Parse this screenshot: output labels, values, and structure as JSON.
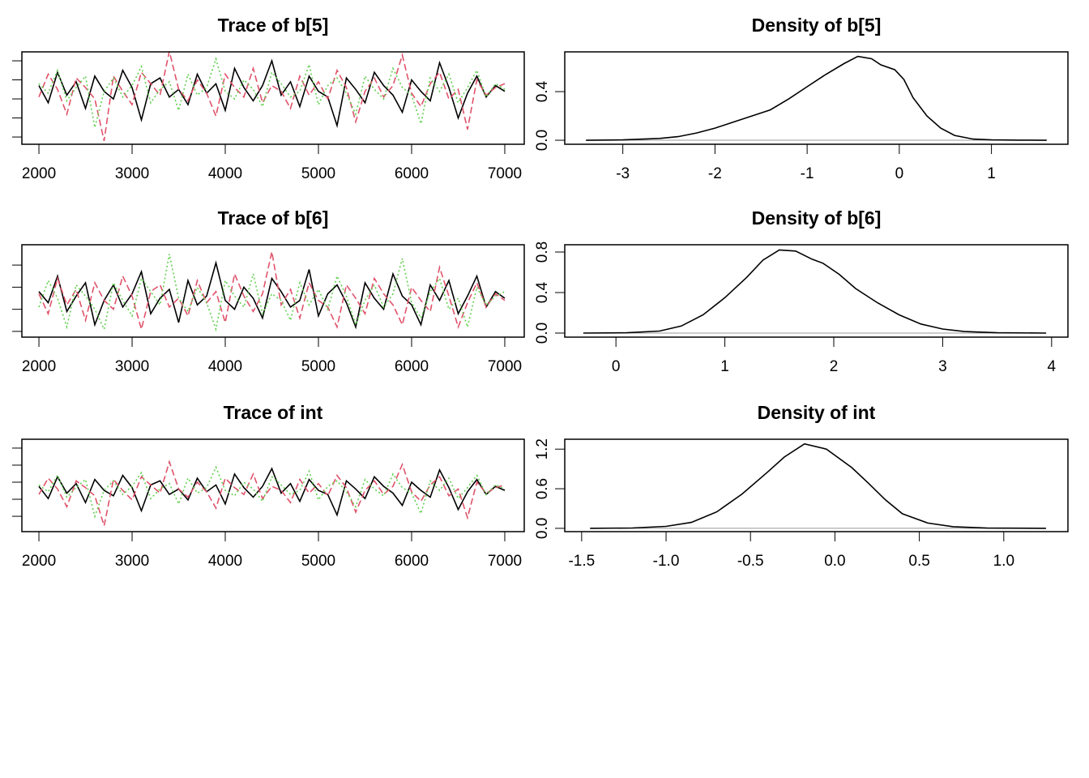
{
  "chart_data": [
    {
      "type": "line",
      "title": "Trace of b[5]",
      "ytick_labels": false,
      "x": [
        2000,
        2100,
        2200,
        2300,
        2400,
        2500,
        2600,
        2700,
        2800,
        2900,
        3000,
        3100,
        3200,
        3300,
        3400,
        3500,
        3600,
        3700,
        3800,
        3900,
        4000,
        4100,
        4200,
        4300,
        4400,
        4500,
        4600,
        4700,
        4800,
        4900,
        5000,
        5100,
        5200,
        5300,
        5400,
        5500,
        5600,
        5700,
        5800,
        5900,
        6000,
        6100,
        6200,
        6300,
        6400,
        6500,
        6600,
        6700,
        6800,
        6900,
        7000
      ],
      "series": [
        {
          "color": "#000000",
          "linestyle": "solid",
          "values": [
            -0.3,
            -1.2,
            0.4,
            -0.8,
            -0.1,
            -1.5,
            0.2,
            -0.6,
            -1.0,
            0.5,
            -0.4,
            -2.1,
            -0.2,
            0.1,
            -0.9,
            -0.5,
            -1.3,
            0.3,
            -0.7,
            -0.2,
            -1.6,
            0.6,
            -0.4,
            -1.1,
            -0.3,
            1.0,
            -0.8,
            -0.1,
            -1.4,
            0.2,
            -0.6,
            -0.9,
            -2.4,
            0.1,
            -0.5,
            -1.2,
            0.4,
            -0.3,
            -0.8,
            -1.7,
            0.0,
            -0.6,
            -1.1,
            0.9,
            -0.4,
            -2.0,
            -0.7,
            0.2,
            -0.9,
            -0.3,
            -0.6
          ]
        },
        {
          "color": "#df536b",
          "linestyle": "dashed",
          "values": [
            -0.9,
            0.3,
            -0.5,
            -1.8,
            0.1,
            -0.4,
            -1.0,
            -3.2,
            0.2,
            -0.6,
            -1.3,
            0.4,
            -0.2,
            -0.8,
            1.5,
            -0.5,
            -1.1,
            0.0,
            -0.7,
            -1.9,
            0.3,
            -0.4,
            -0.9,
            0.6,
            -1.2,
            -0.3,
            -0.6,
            -1.5,
            0.2,
            -0.8,
            -0.1,
            -1.0,
            0.5,
            -0.4,
            -2.2,
            -0.6,
            0.1,
            -0.9,
            -0.3,
            1.3,
            -0.7,
            -1.4,
            -0.2,
            0.4,
            -1.0,
            -0.5,
            -2.6,
            0.0,
            -0.8,
            -0.4,
            -0.2
          ]
        },
        {
          "color": "#61d04f",
          "linestyle": "dotted",
          "values": [
            -0.2,
            -0.7,
            0.5,
            -1.1,
            -0.4,
            0.2,
            -2.5,
            -0.6,
            0.1,
            -0.9,
            -0.3,
            0.7,
            -1.2,
            -0.5,
            -0.1,
            -1.6,
            0.3,
            -0.8,
            -0.4,
            1.1,
            -0.6,
            -1.0,
            0.0,
            -0.5,
            -1.4,
            0.4,
            -0.2,
            -0.9,
            -0.6,
            0.8,
            -1.3,
            -0.3,
            0.1,
            -0.7,
            -1.8,
            0.2,
            -0.5,
            -1.0,
            0.6,
            -0.4,
            -0.8,
            -2.3,
            0.1,
            -0.6,
            0.3,
            -1.2,
            -0.4,
            0.5,
            -0.9,
            -0.2,
            -0.5
          ]
        }
      ],
      "xlim": [
        1817,
        7209
      ],
      "xticks": [
        2000,
        3000,
        4000,
        5000,
        6000,
        7000
      ],
      "ylim": [
        -3.38,
        1.47
      ],
      "yticks": [
        -3,
        -2,
        -1,
        0,
        1
      ]
    },
    {
      "type": "line",
      "title": "Density of b[5]",
      "color": "#000000",
      "x": [
        -3.4,
        -3.0,
        -2.6,
        -2.4,
        -2.2,
        -2.0,
        -1.8,
        -1.6,
        -1.4,
        -1.2,
        -1.0,
        -0.8,
        -0.6,
        -0.45,
        -0.3,
        -0.2,
        -0.05,
        0.05,
        0.15,
        0.3,
        0.45,
        0.6,
        0.8,
        1.0,
        1.3,
        1.6
      ],
      "values": [
        0,
        0.003,
        0.015,
        0.03,
        0.06,
        0.1,
        0.15,
        0.2,
        0.25,
        0.34,
        0.44,
        0.54,
        0.63,
        0.69,
        0.67,
        0.62,
        0.58,
        0.5,
        0.35,
        0.2,
        0.1,
        0.04,
        0.01,
        0.003,
        0.001,
        0
      ],
      "xlim": [
        -3.63,
        1.83
      ],
      "xticks": [
        -3,
        -2,
        -1,
        0,
        1
      ],
      "ylim": [
        -0.033,
        0.727
      ],
      "yticks": [
        {
          "value": 0,
          "label": "0.0"
        },
        {
          "value": 0.4,
          "label": "0.4"
        }
      ]
    },
    {
      "type": "line",
      "title": "Trace of b[6]",
      "ytick_labels": false,
      "x": [
        2000,
        2100,
        2200,
        2300,
        2400,
        2500,
        2600,
        2700,
        2800,
        2900,
        3000,
        3100,
        3200,
        3300,
        3400,
        3500,
        3600,
        3700,
        3800,
        3900,
        4000,
        4100,
        4200,
        4300,
        4400,
        4500,
        4600,
        4700,
        4800,
        4900,
        5000,
        5100,
        5200,
        5300,
        5400,
        5500,
        5600,
        5700,
        5800,
        5900,
        6000,
        6100,
        6200,
        6300,
        6400,
        6500,
        6600,
        6700,
        6800,
        6900,
        7000
      ],
      "series": [
        {
          "color": "#000000",
          "linestyle": "solid",
          "values": [
            1.8,
            1.3,
            2.5,
            0.9,
            1.6,
            2.2,
            0.3,
            1.4,
            2.1,
            1.1,
            1.7,
            2.7,
            0.8,
            1.5,
            1.9,
            0.4,
            2.3,
            1.2,
            1.6,
            3.1,
            1.4,
            1.0,
            2.0,
            1.5,
            0.6,
            2.4,
            1.8,
            1.1,
            1.4,
            2.8,
            0.7,
            1.7,
            2.1,
            1.3,
            0.2,
            2.2,
            1.5,
            1.0,
            2.6,
            1.6,
            1.2,
            0.3,
            2.1,
            1.4,
            2.3,
            0.8,
            1.6,
            2.5,
            1.1,
            1.8,
            1.5
          ]
        },
        {
          "color": "#df536b",
          "linestyle": "dashed",
          "values": [
            1.7,
            0.8,
            2.4,
            1.2,
            1.9,
            0.5,
            2.2,
            1.4,
            1.0,
            2.5,
            1.6,
            0.1,
            1.8,
            2.1,
            1.1,
            1.5,
            0.7,
            2.3,
            1.3,
            1.8,
            0.4,
            2.6,
            1.6,
            0.9,
            1.7,
            3.6,
            1.2,
            1.9,
            0.6,
            2.2,
            1.4,
            1.1,
            0.2,
            2.1,
            1.5,
            0.8,
            2.4,
            1.7,
            1.2,
            0.3,
            2.0,
            1.4,
            0.9,
            2.9,
            1.6,
            0.2,
            1.3,
            2.2,
            1.1,
            1.7,
            1.4
          ]
        },
        {
          "color": "#61d04f",
          "linestyle": "dotted",
          "values": [
            1.1,
            2.3,
            1.5,
            0.2,
            2.1,
            1.6,
            1.0,
            0.1,
            2.2,
            1.4,
            0.7,
            2.4,
            1.8,
            1.2,
            3.5,
            1.5,
            0.9,
            2.0,
            1.3,
            0.1,
            2.3,
            1.6,
            1.1,
            2.6,
            0.8,
            1.7,
            1.4,
            0.5,
            2.2,
            1.2,
            1.9,
            1.0,
            2.5,
            1.6,
            0.3,
            1.4,
            2.1,
            1.1,
            1.7,
            3.3,
            1.3,
            0.6,
            1.8,
            2.4,
            1.0,
            1.5,
            0.2,
            2.0,
            1.2,
            1.6,
            1.8
          ]
        }
      ],
      "xlim": [
        1817,
        7209
      ],
      "xticks": [
        2000,
        3000,
        4000,
        5000,
        6000,
        7000
      ],
      "ylim": [
        -0.26,
        3.92
      ],
      "yticks": [
        0,
        1,
        2,
        3
      ]
    },
    {
      "type": "line",
      "title": "Density of b[6]",
      "color": "#000000",
      "x": [
        -0.3,
        0.1,
        0.4,
        0.6,
        0.8,
        1.0,
        1.2,
        1.35,
        1.5,
        1.65,
        1.8,
        1.9,
        2.05,
        2.2,
        2.4,
        2.6,
        2.8,
        3.0,
        3.2,
        3.5,
        3.95
      ],
      "values": [
        0,
        0.003,
        0.02,
        0.07,
        0.18,
        0.35,
        0.55,
        0.72,
        0.82,
        0.81,
        0.73,
        0.69,
        0.58,
        0.44,
        0.3,
        0.18,
        0.09,
        0.04,
        0.015,
        0.003,
        0
      ],
      "xlim": [
        -0.47,
        4.15
      ],
      "xticks": [
        0,
        1,
        2,
        3,
        4
      ],
      "ylim": [
        -0.04,
        0.872
      ],
      "yticks": [
        {
          "value": 0,
          "label": "0.0"
        },
        {
          "value": 0.4,
          "label": "0.4"
        },
        {
          "value": 0.8,
          "label": "0.8"
        }
      ]
    },
    {
      "type": "line",
      "title": "Trace of int",
      "ytick_labels": false,
      "x": [
        2000,
        2100,
        2200,
        2300,
        2400,
        2500,
        2600,
        2700,
        2800,
        2900,
        3000,
        3100,
        3200,
        3300,
        3400,
        3500,
        3600,
        3700,
        3800,
        3900,
        4000,
        4100,
        4200,
        4300,
        4400,
        4500,
        4600,
        4700,
        4800,
        4900,
        5000,
        5100,
        5200,
        5300,
        5400,
        5500,
        5600,
        5700,
        5800,
        5900,
        6000,
        6100,
        6200,
        6300,
        6400,
        6500,
        6600,
        6700,
        6800,
        6900,
        7000
      ],
      "series": [
        {
          "color": "#000000",
          "linestyle": "solid",
          "values": [
            -0.12,
            -0.48,
            0.16,
            -0.32,
            -0.04,
            -0.6,
            0.08,
            -0.24,
            -0.4,
            0.2,
            -0.16,
            -0.84,
            -0.08,
            0.04,
            -0.36,
            -0.2,
            -0.52,
            0.12,
            -0.28,
            -0.08,
            -0.64,
            0.24,
            -0.16,
            -0.44,
            -0.12,
            0.4,
            -0.32,
            -0.04,
            -0.56,
            0.08,
            -0.24,
            -0.36,
            -0.96,
            0.04,
            -0.2,
            -0.48,
            0.16,
            -0.12,
            -0.32,
            -0.68,
            0.0,
            -0.24,
            -0.44,
            0.36,
            -0.16,
            -0.8,
            -0.28,
            0.08,
            -0.36,
            -0.12,
            -0.24
          ]
        },
        {
          "color": "#df536b",
          "linestyle": "dashed",
          "values": [
            -0.36,
            0.12,
            -0.2,
            -0.72,
            0.04,
            -0.16,
            -0.4,
            -1.28,
            0.08,
            -0.24,
            -0.52,
            0.16,
            -0.08,
            -0.32,
            0.6,
            -0.2,
            -0.44,
            0.0,
            -0.28,
            -0.76,
            0.12,
            -0.16,
            -0.36,
            0.24,
            -0.48,
            -0.12,
            -0.24,
            -0.6,
            0.08,
            -0.32,
            -0.04,
            -0.4,
            0.2,
            -0.16,
            -0.88,
            -0.24,
            0.04,
            -0.36,
            -0.12,
            0.52,
            -0.28,
            -0.56,
            -0.08,
            0.16,
            -0.4,
            -0.2,
            -1.04,
            0.0,
            -0.32,
            -0.16,
            -0.08
          ]
        },
        {
          "color": "#61d04f",
          "linestyle": "dotted",
          "values": [
            -0.08,
            -0.28,
            0.2,
            -0.44,
            -0.16,
            0.08,
            -1.0,
            -0.24,
            0.04,
            -0.36,
            -0.12,
            0.28,
            -0.48,
            -0.2,
            -0.04,
            -0.64,
            0.12,
            -0.32,
            -0.16,
            0.44,
            -0.24,
            -0.4,
            0.0,
            -0.2,
            -0.56,
            0.16,
            -0.08,
            -0.36,
            -0.24,
            0.32,
            -0.52,
            -0.12,
            0.04,
            -0.28,
            -0.72,
            0.08,
            -0.2,
            -0.4,
            0.24,
            -0.16,
            -0.32,
            -0.92,
            0.04,
            -0.24,
            0.12,
            -0.48,
            -0.16,
            0.2,
            -0.36,
            -0.08,
            -0.2
          ]
        }
      ],
      "xlim": [
        1817,
        7209
      ],
      "xticks": [
        2000,
        3000,
        4000,
        5000,
        6000,
        7000
      ],
      "ylim": [
        -1.45,
        1.26
      ],
      "yticks": [
        -1,
        -0.5,
        0,
        0.5,
        1
      ]
    },
    {
      "type": "line",
      "title": "Density of int",
      "color": "#000000",
      "x": [
        -1.45,
        -1.2,
        -1.0,
        -0.85,
        -0.7,
        -0.55,
        -0.4,
        -0.3,
        -0.18,
        -0.05,
        0.1,
        0.2,
        0.3,
        0.4,
        0.55,
        0.7,
        0.9,
        1.25
      ],
      "values": [
        0,
        0.005,
        0.03,
        0.09,
        0.25,
        0.52,
        0.85,
        1.08,
        1.28,
        1.2,
        0.92,
        0.68,
        0.43,
        0.22,
        0.08,
        0.025,
        0.004,
        0
      ],
      "xlim": [
        -1.6,
        1.38
      ],
      "xticks": [
        -1.5,
        {
          "value": -1,
          "label": "-1.0"
        },
        -0.5,
        {
          "value": 0,
          "label": "0.0"
        },
        0.5,
        {
          "value": 1,
          "label": "1.0"
        }
      ],
      "ylim": [
        -0.05,
        1.35
      ],
      "yticks": [
        {
          "value": 0,
          "label": "0.0"
        },
        {
          "value": 0.6,
          "label": "0.6"
        },
        {
          "value": 1.2,
          "label": "1.2"
        }
      ]
    }
  ]
}
